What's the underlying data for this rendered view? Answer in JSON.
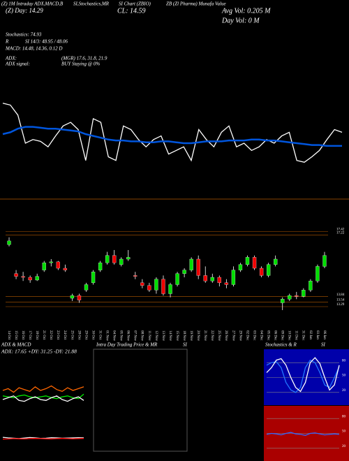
{
  "header": {
    "items": [
      "(Z) 1M Intraday ADX,MACD,B",
      "SI,Stochastics,MR",
      "SI Chart (ZBIO)",
      "ZB (Zl Pharma) Munafa Value",
      "CL: 14.59",
      "Avg Vol: 0.205 M",
      "Day Vol: 0  M",
      "(Z) Day: 14.29",
      "Stochastics: 74.93",
      "R",
      "SI 14/3: 48.95 / 48.06",
      "MACD: 14.48, 14.36, 0.12  D",
      "ADX:",
      "(MGR) 17.6, 31.8, 21.9",
      "ADX  signal:",
      "BUY Staying @ 0%"
    ],
    "panels": [
      "ADX  & MACD",
      "ADX: 17.65  +DY: 31.25  -DY: 21.88",
      "Intra  Day Trading Price  & MR",
      "SI",
      "Stochastics & R",
      "SI"
    ]
  },
  "chart_data": [
    {
      "type": "line",
      "ylim": [
        0,
        100
      ],
      "series": [
        {
          "color": "#ffffff",
          "values": [
            94,
            92,
            81,
            50,
            54,
            52,
            46,
            58,
            69,
            73,
            65,
            31,
            77,
            73,
            35,
            31,
            69,
            65,
            54,
            46,
            54,
            58,
            38,
            42,
            46,
            31,
            65,
            54,
            46,
            62,
            69,
            46,
            50,
            42,
            46,
            54,
            50,
            58,
            62,
            31,
            29,
            35,
            42,
            54,
            65,
            62
          ]
        },
        {
          "color": "#0055dd",
          "values": [
            60,
            62,
            66,
            68,
            68,
            67,
            66,
            66,
            65,
            64,
            63,
            60,
            58,
            56,
            54,
            53,
            53,
            52,
            52,
            51,
            51,
            52,
            52,
            51,
            50,
            50,
            51,
            52,
            52,
            52,
            53,
            53,
            53,
            54,
            54,
            53,
            53,
            52,
            51,
            50,
            49,
            48,
            48,
            47,
            47,
            47
          ]
        }
      ]
    },
    {
      "type": "candlestick",
      "ylim": [
        12.1,
        19.2
      ],
      "yticks": [
        17.42,
        17.22,
        13.84,
        13.54,
        13.29
      ],
      "up_color": "#00dd00",
      "down_color": "#ee0000",
      "x": [
        "14 Oct",
        "15 Oct",
        "16 Oct",
        "17 Oct",
        "18 Oct",
        "21 Oct",
        "22 Oct",
        "23 Oct",
        "24 Oct",
        "25 Oct",
        "28 Oct",
        "29 Oct",
        "30 Oct",
        "31 Oct",
        "01 Nov",
        "04 Nov",
        "05 Nov",
        "06 Nov",
        "07 Nov",
        "08 Nov",
        "11 Nov",
        "12 Nov",
        "13 Nov",
        "14 Nov",
        "15 Nov",
        "18 Nov",
        "19 Nov",
        "20 Nov",
        "21 Nov",
        "22 Nov",
        "25 Nov",
        "26 Nov",
        "27 Nov",
        "29 Nov",
        "02 Dec",
        "03 Dec",
        "04 Dec",
        "05 Dec",
        "06 Dec",
        "09 Dec",
        "10 Dec",
        "11 Dec",
        "31 Dec",
        "02 Jan",
        "03 Jan",
        "06 Jan"
      ],
      "open": [
        16.7,
        15.1,
        14.95,
        14.9,
        14.75,
        15.3,
        15.7,
        15.75,
        15.4,
        13.75,
        13.9,
        14.2,
        14.6,
        15.3,
        15.7,
        16.1,
        15.6,
        15.9,
        15.0,
        14.6,
        14.45,
        14.2,
        14.8,
        14.0,
        14.5,
        15.1,
        15.3,
        15.9,
        15.0,
        14.7,
        14.9,
        14.6,
        14.5,
        15.3,
        15.6,
        16.0,
        15.4,
        15.0,
        15.6,
        13.5,
        13.7,
        13.9,
        13.85,
        14.2,
        14.7,
        15.5
      ],
      "high": [
        17.1,
        15.3,
        15.2,
        15.0,
        15.1,
        15.8,
        15.9,
        15.8,
        15.6,
        14.0,
        14.0,
        14.6,
        15.3,
        15.8,
        16.3,
        16.4,
        16.0,
        16.4,
        15.2,
        14.8,
        14.6,
        14.9,
        15.0,
        14.6,
        15.2,
        15.4,
        16.0,
        16.1,
        15.5,
        15.1,
        15.0,
        14.8,
        15.5,
        15.7,
        16.1,
        16.1,
        15.5,
        15.7,
        16.1,
        13.8,
        14.0,
        14.1,
        14.3,
        14.8,
        15.6,
        16.3
      ],
      "low": [
        16.6,
        14.8,
        14.7,
        14.6,
        14.7,
        15.2,
        15.5,
        15.3,
        15.2,
        13.6,
        13.5,
        14.1,
        14.5,
        15.2,
        15.6,
        15.6,
        15.5,
        15.8,
        14.8,
        14.3,
        14.1,
        14.0,
        13.9,
        13.8,
        14.4,
        14.9,
        15.2,
        14.8,
        14.6,
        14.6,
        14.4,
        14.3,
        14.4,
        15.2,
        15.5,
        15.3,
        14.9,
        14.9,
        15.5,
        13.1,
        13.6,
        13.7,
        13.8,
        14.1,
        14.6,
        15.4
      ],
      "close": [
        16.9,
        14.95,
        14.9,
        14.75,
        14.95,
        15.7,
        15.75,
        15.4,
        15.3,
        13.9,
        13.65,
        14.5,
        15.2,
        15.7,
        16.1,
        15.7,
        15.9,
        16.0,
        14.95,
        14.45,
        14.2,
        14.8,
        14.0,
        14.5,
        15.1,
        15.3,
        15.9,
        15.0,
        14.7,
        14.9,
        14.6,
        14.5,
        15.3,
        15.6,
        16.0,
        15.4,
        15.0,
        15.6,
        15.9,
        13.7,
        13.9,
        13.85,
        14.2,
        14.7,
        15.5,
        16.1
      ]
    },
    {
      "type": "line",
      "ylim": [
        0,
        60
      ],
      "series": [
        {
          "color": "#00ee00",
          "values": [
            24,
            23,
            22,
            24,
            25,
            23,
            22,
            23,
            24,
            22,
            21,
            23,
            24,
            22,
            21,
            26
          ]
        },
        {
          "color": "#ffffff",
          "values": [
            20,
            22,
            24,
            19,
            18,
            21,
            23,
            20,
            19,
            22,
            24,
            20,
            18,
            21,
            23,
            19
          ]
        },
        {
          "color": "#ff6600",
          "values": [
            30,
            32,
            28,
            33,
            31,
            29,
            34,
            30,
            32,
            35,
            31,
            29,
            33,
            30,
            32,
            34
          ]
        }
      ]
    },
    {
      "type": "line",
      "ylim": [
        -1,
        1
      ],
      "series": [
        {
          "color": "#ffffff",
          "values": [
            0.15,
            0.12,
            0.1,
            0.08,
            0.11,
            0.14,
            0.12,
            0.09,
            0.1,
            0.13,
            0.12,
            0.1,
            0.11,
            0.12,
            0.13,
            0.12
          ]
        },
        {
          "color": "#ff0000",
          "values": [
            0.05,
            0.06,
            0.08,
            0.07,
            0.06,
            0.08,
            0.09,
            0.08,
            0.07,
            0.06,
            0.08,
            0.09,
            0.08,
            0.07,
            0.08,
            0.09
          ]
        }
      ]
    },
    {
      "type": "line",
      "ylim": [
        0,
        100
      ],
      "yticks": [
        80,
        50,
        20
      ],
      "series": [
        {
          "color": "#2277ff",
          "values": [
            75,
            80,
            82,
            70,
            40,
            25,
            20,
            30,
            70,
            85,
            80,
            60,
            35,
            30,
            50,
            72
          ]
        },
        {
          "color": "#ffffff",
          "values": [
            60,
            70,
            85,
            88,
            75,
            50,
            30,
            22,
            40,
            80,
            90,
            78,
            50,
            25,
            35,
            75
          ]
        }
      ]
    },
    {
      "type": "line",
      "ylim": [
        0,
        100
      ],
      "yticks": [
        80,
        50,
        20
      ],
      "series": [
        {
          "color": "#3366ff",
          "values": [
            48,
            50,
            49,
            47,
            50,
            52,
            49,
            48,
            46,
            50,
            51,
            49,
            47,
            48,
            49,
            48
          ]
        }
      ]
    }
  ]
}
